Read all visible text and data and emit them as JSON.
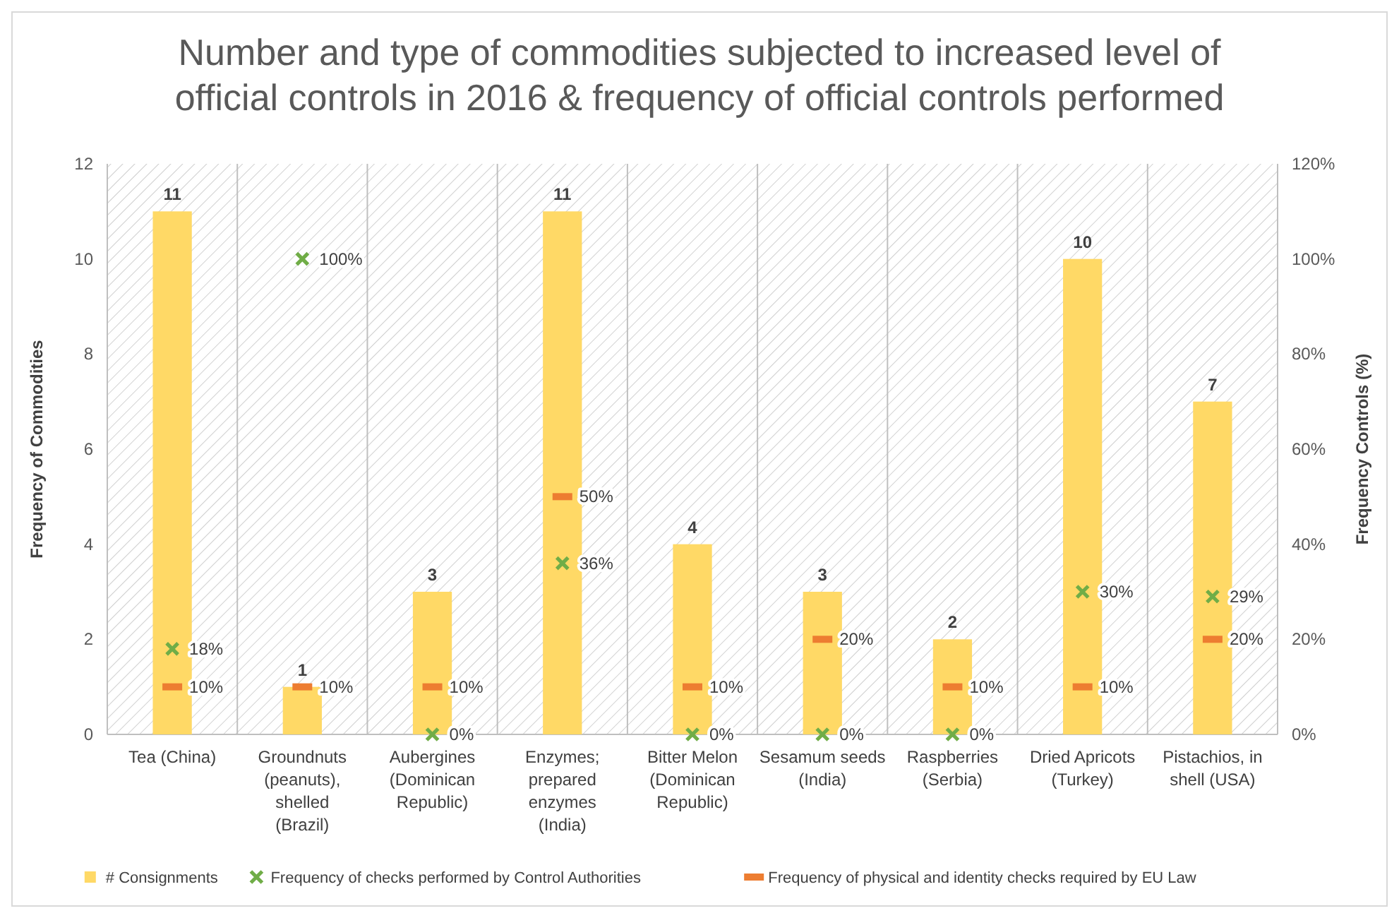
{
  "chart_data": {
    "type": "bar",
    "title": "Number and type of commodities subjected to increased level of official controls in 2016 & frequency of official controls performed",
    "ylabel": "Frequency of Commodities",
    "y2label": "Frequency Controls (%)",
    "categories": [
      "Tea (China)",
      "Groundnuts (peanuts), shelled (Brazil)",
      "Aubergines (Dominican Republic)",
      "Enzymes; prepared enzymes (India)",
      "Bitter Melon (Dominican Republic)",
      "Sesamum seeds (India)",
      "Raspberries (Serbia)",
      "Dried Apricots (Turkey)",
      "Pistachios, in shell (USA)"
    ],
    "series": [
      {
        "name": "# Consignments",
        "color": "#ffd966",
        "values": [
          11,
          1,
          3,
          11,
          4,
          3,
          2,
          10,
          7
        ],
        "value_labels": [
          "11",
          "1",
          "3",
          "11",
          "4",
          "3",
          "2",
          "10",
          "7"
        ]
      },
      {
        "name": "Frequency of checks performed by Control Authorities",
        "type": "scatter",
        "axis": "y2",
        "marker": "cross",
        "color": "#70ad47",
        "values": [
          18,
          100,
          0,
          36,
          0,
          0,
          0,
          30,
          29
        ],
        "value_labels": [
          "18%",
          "100%",
          "0%",
          "36%",
          "0%",
          "0%",
          "0%",
          "30%",
          "29%"
        ]
      },
      {
        "name": "Frequency of physical and identity checks required by EU Law",
        "type": "scatter",
        "axis": "y2",
        "marker": "square",
        "color": "#ed7d31",
        "values": [
          10,
          10,
          10,
          50,
          10,
          20,
          10,
          10,
          20
        ],
        "value_labels": [
          "10%",
          "10%",
          "10%",
          "50%",
          "10%",
          "20%",
          "10%",
          "10%",
          "20%"
        ]
      }
    ],
    "ylim": [
      0,
      12
    ],
    "yticks": [
      0,
      2,
      4,
      6,
      8,
      10,
      12
    ],
    "y2lim": [
      0,
      120
    ],
    "y2ticks": [
      {
        "value": 0,
        "label": "0%"
      },
      {
        "value": 20,
        "label": "20%"
      },
      {
        "value": 40,
        "label": "40%"
      },
      {
        "value": 60,
        "label": "60%"
      },
      {
        "value": 80,
        "label": "80%"
      },
      {
        "value": 100,
        "label": "100%"
      },
      {
        "value": 120,
        "label": "120%"
      }
    ],
    "grid": "x",
    "legend": "bottom"
  }
}
